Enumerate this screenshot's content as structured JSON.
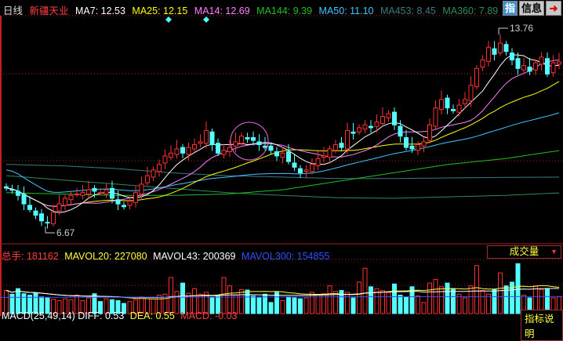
{
  "header": {
    "period": "日线",
    "stock_name": "新疆天业",
    "indicators": [
      {
        "label": "MA7: 12.53",
        "color": "#ffffff"
      },
      {
        "label": "MA25: 12.15",
        "color": "#ffff00"
      },
      {
        "label": "MA14: 12.69",
        "color": "#ff80ff"
      },
      {
        "label": "MA144: 9.39",
        "color": "#20c020"
      },
      {
        "label": "MA50: 11.10",
        "color": "#40c8ff"
      },
      {
        "label": "MA453: 8.45",
        "color": "#3a7a80"
      },
      {
        "label": "MA360: 7.89",
        "color": "#2e8b57"
      }
    ],
    "buttons": {
      "zhi": "指",
      "info": "信息",
      "exit_icon": "exit-icon"
    }
  },
  "volume_panel": {
    "title": "总手: 181162",
    "indicators": [
      {
        "label": "MAVOL20: 227080",
        "color": "#ffff40"
      },
      {
        "label": "MAVOL43: 200369",
        "color": "#ffffff"
      },
      {
        "label": "MAVOL300: 154855",
        "color": "#3050ff"
      }
    ],
    "dropdown": "成交量"
  },
  "macd_panel": {
    "indicators": [
      {
        "label": "MACD(25,49,14) DIFF: 0.53",
        "color": "#ffffff"
      },
      {
        "label": "DEA: 0.55",
        "color": "#ffff40"
      },
      {
        "label": "MACD: -0.03",
        "color": "#ff4040"
      }
    ],
    "explain_button": "指标说明"
  },
  "chart_data": {
    "type": "candlestick",
    "high_label": "13.76",
    "low_label": "6.67",
    "colors": {
      "up": "#ff3030",
      "down": "#54ffff",
      "ma7": "#ffffff",
      "ma14": "#ff80ff",
      "ma25": "#ffff00",
      "ma50": "#40c8ff",
      "ma144": "#20c020",
      "ma360": "#2e8b57",
      "ma453": "#3a7a80"
    },
    "close": [
      8.06,
      8.0,
      7.8,
      7.5,
      7.3,
      7.1,
      6.9,
      6.85,
      7.2,
      7.5,
      7.7,
      7.8,
      7.85,
      7.9,
      8.0,
      7.95,
      7.9,
      8.0,
      7.7,
      7.5,
      7.4,
      7.6,
      7.9,
      8.2,
      8.5,
      8.7,
      8.9,
      9.2,
      9.3,
      9.45,
      9.3,
      9.5,
      9.6,
      9.7,
      10.1,
      9.6,
      9.3,
      9.4,
      9.5,
      9.7,
      9.9,
      9.8,
      9.75,
      9.6,
      9.5,
      9.4,
      9.2,
      9.3,
      9.0,
      8.8,
      8.6,
      8.7,
      8.9,
      9.1,
      9.2,
      9.45,
      9.6,
      9.5,
      10.1,
      10.0,
      10.2,
      10.3,
      10.2,
      10.4,
      10.6,
      10.7,
      10.3,
      9.9,
      9.5,
      9.45,
      9.6,
      9.7,
      10.3,
      10.9,
      11.2,
      10.9,
      10.8,
      11.0,
      11.2,
      11.7,
      12.3,
      12.6,
      13.05,
      12.8,
      13.2,
      12.9,
      12.6,
      12.3,
      12.4,
      12.2,
      12.5,
      12.7,
      12.1,
      12.5,
      12.53
    ],
    "volume": [
      250000,
      210000,
      270000,
      215000,
      200000,
      220000,
      180000,
      170000,
      155000,
      140000,
      160000,
      150000,
      200000,
      140000,
      170000,
      215000,
      130000,
      160000,
      150000,
      140000,
      110000,
      130000,
      150000,
      180000,
      175000,
      160000,
      200000,
      210000,
      390000,
      240000,
      330000,
      220000,
      270000,
      210000,
      230000,
      170000,
      190000,
      390000,
      300000,
      200000,
      260000,
      255000,
      190000,
      170000,
      210000,
      120000,
      230000,
      140000,
      180000,
      170000,
      160000,
      170000,
      230000,
      200000,
      215000,
      300000,
      240000,
      250000,
      230000,
      170000,
      340000,
      490000,
      290000,
      270000,
      250000,
      230000,
      320000,
      200000,
      180000,
      290000,
      190000,
      120000,
      330000,
      370000,
      290000,
      330000,
      270000,
      210000,
      170000,
      300000,
      520000,
      250000,
      210000,
      260000,
      440000,
      300000,
      340000,
      540000,
      200000,
      170000,
      300000,
      260000,
      270000,
      170000,
      181162
    ],
    "long_ma": {
      "ma144": [
        7.9,
        7.85,
        7.8,
        7.8,
        7.85,
        8.0,
        8.3,
        8.6,
        8.9,
        9.1,
        9.39
      ],
      "ma360": [
        8.5,
        8.35,
        8.2,
        8.05,
        7.9,
        7.8,
        7.72,
        7.7,
        7.75,
        7.8,
        7.89
      ],
      "ma453": [
        8.9,
        8.85,
        8.75,
        8.6,
        8.5,
        8.45,
        8.4,
        8.4,
        8.42,
        8.44,
        8.45
      ]
    },
    "mavol300": 154855
  }
}
